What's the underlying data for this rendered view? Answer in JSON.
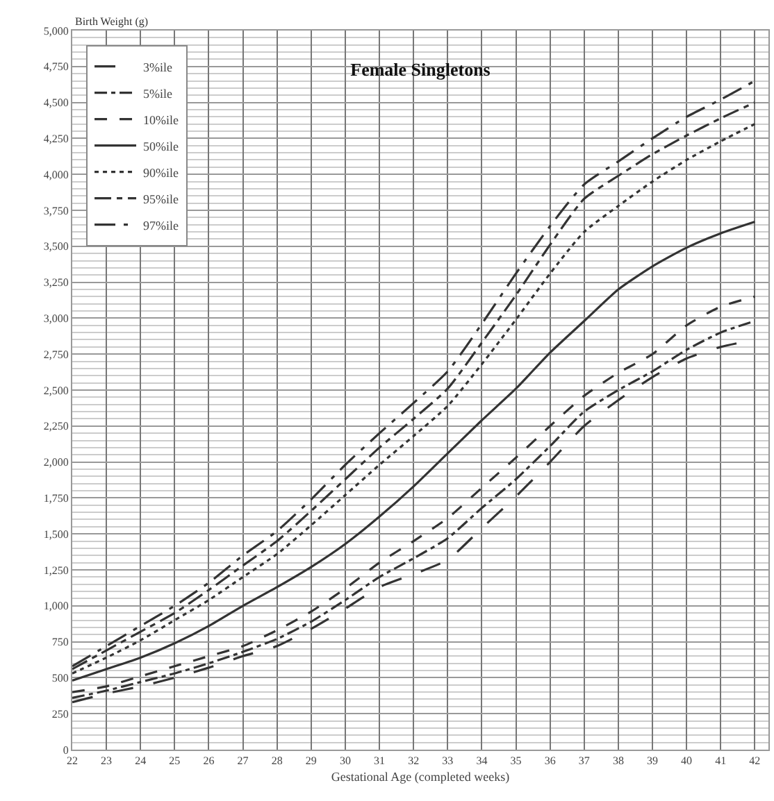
{
  "chart_data": {
    "type": "line",
    "title": "Female Singletons",
    "xlabel": "Gestational Age (completed weeks)",
    "ylabel": "Birth Weight (g)",
    "x": [
      22,
      23,
      24,
      25,
      26,
      27,
      28,
      29,
      30,
      31,
      32,
      33,
      34,
      35,
      36,
      37,
      38,
      39,
      40,
      41,
      42
    ],
    "series": [
      {
        "name": "3%ile",
        "color": "#333333",
        "line_style": "dashed",
        "values": [
          330,
          390,
          440,
          500,
          570,
          650,
          720,
          840,
          980,
          1130,
          1220,
          1320,
          1540,
          1760,
          2000,
          2250,
          2430,
          2590,
          2720,
          2800,
          2850
        ]
      },
      {
        "name": "5%ile",
        "color": "#333333",
        "line_style": "dashed",
        "values": [
          360,
          410,
          470,
          530,
          600,
          680,
          770,
          890,
          1040,
          1200,
          1330,
          1470,
          1680,
          1880,
          2110,
          2350,
          2500,
          2630,
          2780,
          2900,
          2980
        ]
      },
      {
        "name": "10%ile",
        "color": "#333333",
        "line_style": "dashed",
        "values": [
          400,
          440,
          510,
          580,
          650,
          720,
          830,
          960,
          1120,
          1300,
          1450,
          1610,
          1820,
          2030,
          2250,
          2460,
          2620,
          2750,
          2950,
          3080,
          3150
        ]
      },
      {
        "name": "50%ile",
        "color": "#333333",
        "line_style": "solid",
        "values": [
          480,
          560,
          640,
          740,
          860,
          1000,
          1130,
          1270,
          1430,
          1620,
          1830,
          2060,
          2290,
          2510,
          2760,
          2980,
          3200,
          3360,
          3490,
          3590,
          3670
        ]
      },
      {
        "name": "90%ile",
        "color": "#333333",
        "line_style": "dotted",
        "values": [
          530,
          640,
          760,
          900,
          1040,
          1200,
          1360,
          1560,
          1770,
          1980,
          2180,
          2390,
          2680,
          2990,
          3310,
          3600,
          3780,
          3950,
          4100,
          4230,
          4350
        ]
      },
      {
        "name": "95%ile",
        "color": "#333333",
        "line_style": "dashed",
        "values": [
          560,
          690,
          820,
          950,
          1110,
          1280,
          1450,
          1660,
          1880,
          2100,
          2300,
          2510,
          2830,
          3160,
          3510,
          3830,
          3990,
          4140,
          4270,
          4390,
          4500
        ]
      },
      {
        "name": "97%ile",
        "color": "#333333",
        "line_style": "dashed",
        "values": [
          580,
          720,
          860,
          1000,
          1160,
          1350,
          1520,
          1740,
          1980,
          2200,
          2410,
          2630,
          2960,
          3310,
          3640,
          3930,
          4090,
          4250,
          4400,
          4520,
          4650
        ]
      }
    ],
    "xlim": [
      22,
      42.4
    ],
    "xticks": [
      22,
      23,
      24,
      25,
      26,
      27,
      28,
      29,
      30,
      31,
      32,
      33,
      34,
      35,
      36,
      37,
      38,
      39,
      40,
      41,
      42
    ],
    "ylim": [
      0,
      5000
    ],
    "yticks": [
      0,
      250,
      500,
      750,
      {
        "value": 1000,
        "label": "1,000"
      },
      {
        "value": 1250,
        "label": "1,250"
      },
      {
        "value": 1500,
        "label": "1,500"
      },
      {
        "value": 1750,
        "label": "1,750"
      },
      {
        "value": 2000,
        "label": "2,000"
      },
      {
        "value": 2250,
        "label": "2,250"
      },
      {
        "value": 2500,
        "label": "2,500"
      },
      {
        "value": 2750,
        "label": "2,750"
      },
      {
        "value": 3000,
        "label": "3,000"
      },
      {
        "value": 3250,
        "label": "3,250"
      },
      {
        "value": 3500,
        "label": "3,500"
      },
      {
        "value": 3750,
        "label": "3,750"
      },
      {
        "value": 4000,
        "label": "4,000"
      },
      {
        "value": 4250,
        "label": "4,250"
      },
      {
        "value": 4500,
        "label": "4,500"
      },
      {
        "value": 4750,
        "label": "4,750"
      },
      {
        "value": 5000,
        "label": "5,000"
      }
    ],
    "grid": true,
    "legend": "top left",
    "marker": "none"
  }
}
